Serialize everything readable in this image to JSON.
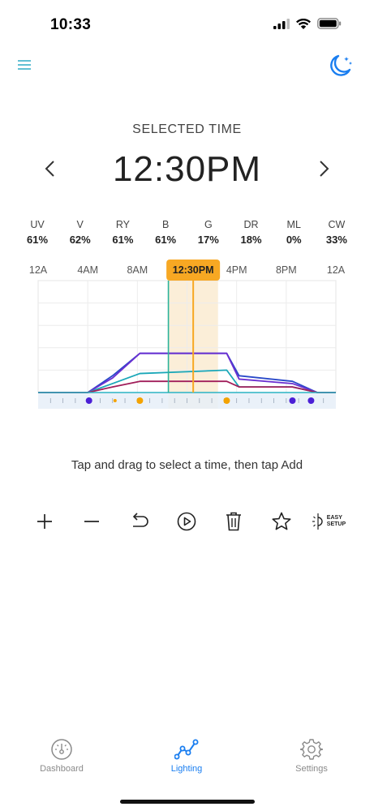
{
  "status_bar": {
    "time": "10:33"
  },
  "header": {
    "selected_label": "SELECTED TIME",
    "time": "12:30PM"
  },
  "channels": [
    {
      "name": "UV",
      "value": "61%"
    },
    {
      "name": "V",
      "value": "62%"
    },
    {
      "name": "RY",
      "value": "61%"
    },
    {
      "name": "B",
      "value": "61%"
    },
    {
      "name": "G",
      "value": "17%"
    },
    {
      "name": "DR",
      "value": "18%"
    },
    {
      "name": "ML",
      "value": "0%"
    },
    {
      "name": "CW",
      "value": "33%"
    }
  ],
  "chart_data": {
    "type": "line",
    "x_ticks": [
      "12A",
      "4AM",
      "8AM",
      "12PM",
      "4PM",
      "8PM",
      "12A"
    ],
    "x_domain_hours": [
      0,
      24
    ],
    "y_domain_percent": [
      0,
      100
    ],
    "grid": true,
    "selected_time_label": "12:30PM",
    "selected_time_hours": 12.5,
    "highlight_range_hours": [
      10.5,
      14.5
    ],
    "cursor_hours": 10.5,
    "series": [
      {
        "color": "#2a49c9",
        "x": [
          0,
          4,
          6,
          8.2,
          15.2,
          16.2,
          20.5,
          22.5,
          24
        ],
        "y": [
          0,
          0,
          15,
          35,
          35,
          15,
          10,
          0,
          0
        ]
      },
      {
        "color": "#6a2fd1",
        "x": [
          0,
          4,
          6,
          8.2,
          15.2,
          16.2,
          20.5,
          22.5,
          24
        ],
        "y": [
          0,
          0,
          13,
          35,
          35,
          12,
          8,
          0,
          0
        ]
      },
      {
        "color": "#1aa7b8",
        "x": [
          0,
          4,
          6,
          8.2,
          15.2,
          16.2,
          20.5,
          22.5,
          24
        ],
        "y": [
          0,
          0,
          8,
          17,
          20,
          5,
          5,
          0,
          0
        ]
      },
      {
        "color": "#a11e5a",
        "x": [
          0,
          4,
          6,
          8.2,
          15.2,
          16.2,
          20.5,
          22.5,
          24
        ],
        "y": [
          0,
          0,
          5,
          10,
          10,
          5,
          5,
          0,
          0
        ]
      }
    ],
    "markers": [
      {
        "hours": 4.1,
        "color": "#4b1fd6",
        "size": "large"
      },
      {
        "hours": 6.2,
        "color": "#f4a300",
        "size": "small"
      },
      {
        "hours": 8.2,
        "color": "#f4a300",
        "size": "large"
      },
      {
        "hours": 15.2,
        "color": "#f4a300",
        "size": "large"
      },
      {
        "hours": 20.5,
        "color": "#4b1fd6",
        "size": "large"
      },
      {
        "hours": 22.0,
        "color": "#4b1fd6",
        "size": "large"
      }
    ]
  },
  "instructions": "Tap and drag to select a time, then tap Add",
  "toolbar": {
    "easy_setup_line1": "EASY",
    "easy_setup_line2": "SETUP"
  },
  "tabs": [
    {
      "label": "Dashboard",
      "icon": "gauge-icon",
      "active": false
    },
    {
      "label": "Lighting",
      "icon": "chart-line-icon",
      "active": true
    },
    {
      "label": "Settings",
      "icon": "gear-icon",
      "active": false
    }
  ],
  "colors": {
    "accent": "#1a7ef0",
    "teal": "#3bb0c9",
    "selection": "#f7a823",
    "inactive": "#8a8a8a"
  }
}
